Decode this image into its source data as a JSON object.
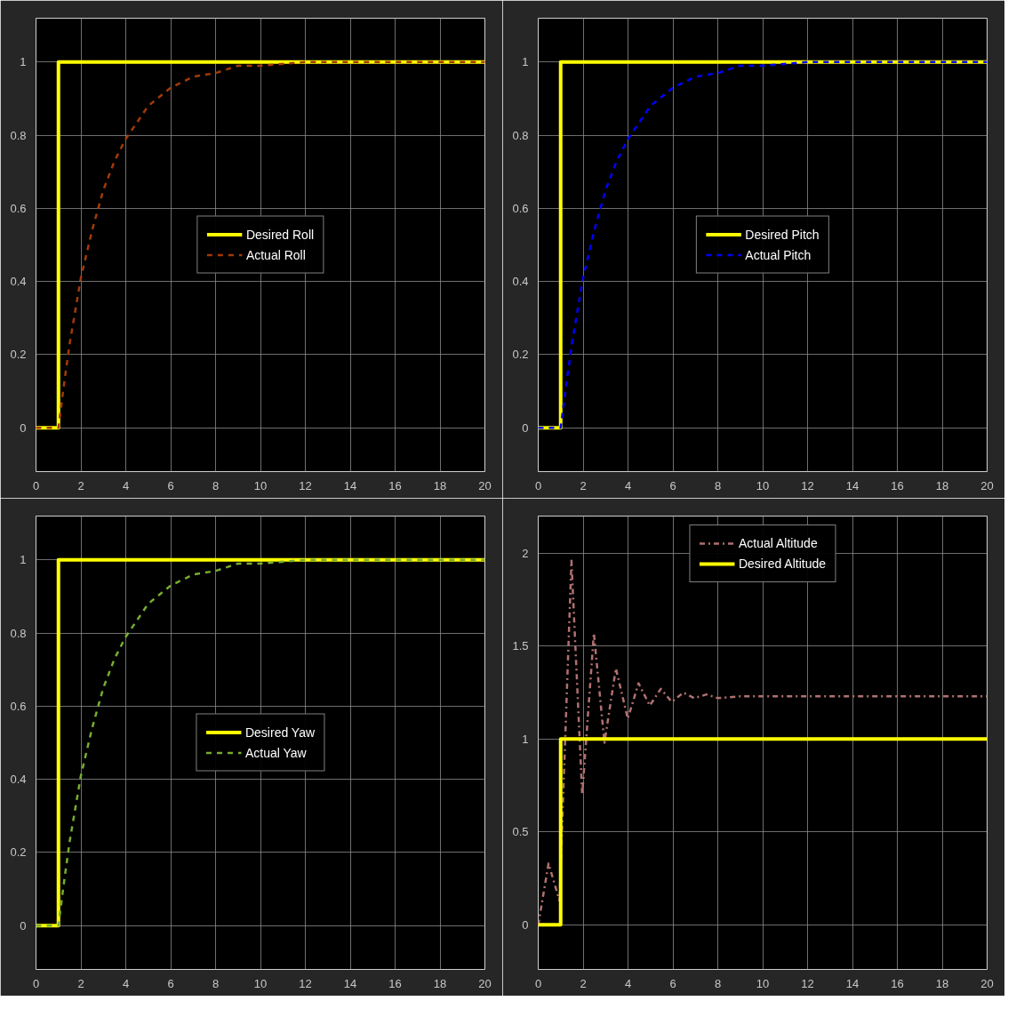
{
  "chart_data": [
    {
      "type": "line",
      "xlim": [
        0,
        20
      ],
      "ylim": [
        -0.12,
        1.12
      ],
      "xticks": [
        0,
        2,
        4,
        6,
        8,
        10,
        12,
        14,
        16,
        18,
        20
      ],
      "yticks": [
        0,
        0.2,
        0.4,
        0.6,
        0.8,
        1
      ],
      "grid": true,
      "legend": "center",
      "series": [
        {
          "name": "Desired Roll",
          "color": "#ffff00",
          "line_style": "solid",
          "x": [
            0,
            1,
            1,
            20
          ],
          "values": [
            0,
            0,
            1,
            1
          ]
        },
        {
          "name": "Actual Roll",
          "color": "#a33a06",
          "line_style": "dashed",
          "x": [
            0,
            1,
            1.25,
            1.5,
            1.75,
            2,
            2.5,
            3,
            3.5,
            4,
            5,
            6,
            7,
            8,
            9,
            10,
            12,
            14,
            16,
            18,
            20
          ],
          "values": [
            0,
            0,
            0.12,
            0.23,
            0.32,
            0.41,
            0.54,
            0.65,
            0.73,
            0.79,
            0.88,
            0.93,
            0.96,
            0.97,
            0.99,
            0.99,
            1.0,
            1.0,
            1.0,
            1.0,
            1.0
          ]
        }
      ]
    },
    {
      "type": "line",
      "xlim": [
        0,
        20
      ],
      "ylim": [
        -0.12,
        1.12
      ],
      "xticks": [
        0,
        2,
        4,
        6,
        8,
        10,
        12,
        14,
        16,
        18,
        20
      ],
      "yticks": [
        0,
        0.2,
        0.4,
        0.6,
        0.8,
        1
      ],
      "grid": true,
      "legend": "center",
      "series": [
        {
          "name": "Desired Pitch",
          "color": "#ffff00",
          "line_style": "solid",
          "x": [
            0,
            1,
            1,
            20
          ],
          "values": [
            0,
            0,
            1,
            1
          ]
        },
        {
          "name": "Actual Pitch",
          "color": "#0000ff",
          "line_style": "dashed",
          "x": [
            0,
            1,
            1.25,
            1.5,
            1.75,
            2,
            2.5,
            3,
            3.5,
            4,
            5,
            6,
            7,
            8,
            9,
            10,
            12,
            14,
            16,
            18,
            20
          ],
          "values": [
            0,
            0,
            0.12,
            0.23,
            0.32,
            0.41,
            0.54,
            0.65,
            0.73,
            0.79,
            0.88,
            0.93,
            0.96,
            0.97,
            0.99,
            0.99,
            1.0,
            1.0,
            1.0,
            1.0,
            1.0
          ]
        }
      ]
    },
    {
      "type": "line",
      "xlim": [
        0,
        20
      ],
      "ylim": [
        -0.12,
        1.12
      ],
      "xticks": [
        0,
        2,
        4,
        6,
        8,
        10,
        12,
        14,
        16,
        18,
        20
      ],
      "yticks": [
        0,
        0.2,
        0.4,
        0.6,
        0.8,
        1
      ],
      "grid": true,
      "legend": "center",
      "series": [
        {
          "name": "Desired Yaw",
          "color": "#ffff00",
          "line_style": "solid",
          "x": [
            0,
            1,
            1,
            20
          ],
          "values": [
            0,
            0,
            1,
            1
          ]
        },
        {
          "name": "Actual Yaw",
          "color": "#77ac30",
          "line_style": "dashed",
          "x": [
            0,
            1,
            1.25,
            1.5,
            1.75,
            2,
            2.5,
            3,
            3.5,
            4,
            5,
            6,
            7,
            8,
            9,
            10,
            12,
            14,
            16,
            18,
            20
          ],
          "values": [
            0,
            0,
            0.12,
            0.23,
            0.32,
            0.41,
            0.54,
            0.65,
            0.73,
            0.79,
            0.88,
            0.93,
            0.96,
            0.97,
            0.99,
            0.99,
            1.0,
            1.0,
            1.0,
            1.0,
            1.0
          ]
        }
      ]
    },
    {
      "type": "line",
      "xlim": [
        0,
        20
      ],
      "ylim": [
        -0.24,
        2.2
      ],
      "xticks": [
        0,
        2,
        4,
        6,
        8,
        10,
        12,
        14,
        16,
        18,
        20
      ],
      "yticks": [
        0,
        0.5,
        1,
        1.5,
        2
      ],
      "grid": true,
      "legend": "top",
      "series": [
        {
          "name": "Actual Altitude",
          "color": "#b07070",
          "line_style": "dashdot",
          "x": [
            0,
            0.46,
            0.95,
            1.48,
            1.96,
            2.48,
            2.95,
            3.46,
            3.99,
            4.47,
            4.97,
            5.46,
            5.95,
            6.47,
            6.95,
            7.5,
            8,
            9,
            10,
            12,
            14,
            16,
            18,
            20
          ],
          "values": [
            0,
            0.33,
            0.13,
            1.96,
            0.7,
            1.57,
            0.98,
            1.38,
            1.11,
            1.3,
            1.18,
            1.27,
            1.2,
            1.25,
            1.22,
            1.24,
            1.22,
            1.23,
            1.23,
            1.23,
            1.23,
            1.23,
            1.23,
            1.23
          ]
        },
        {
          "name": "Desired Altitude",
          "color": "#ffff00",
          "line_style": "solid",
          "x": [
            0,
            1,
            1,
            20
          ],
          "values": [
            0,
            0,
            1,
            1
          ]
        }
      ]
    }
  ]
}
